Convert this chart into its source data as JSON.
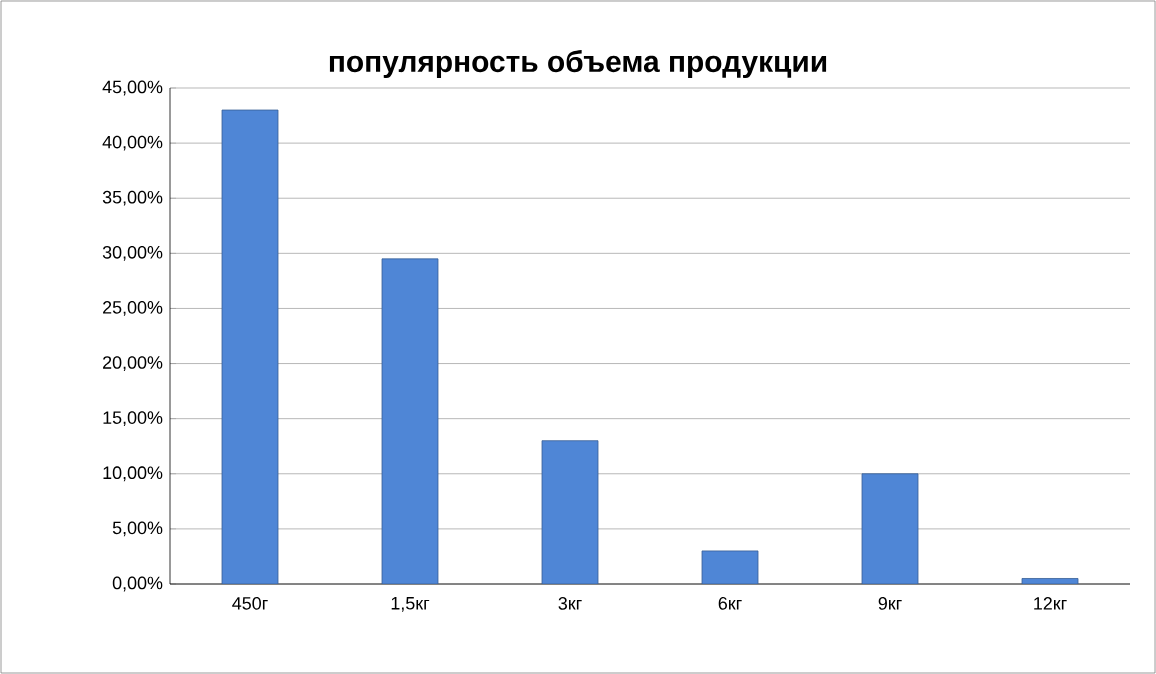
{
  "chart_data": {
    "type": "bar",
    "title": "популярность объема продукции",
    "categories": [
      "450г",
      "1,5кг",
      "3кг",
      "6кг",
      "9кг",
      "12кг"
    ],
    "values": [
      43,
      29.5,
      13,
      3,
      10,
      0.5
    ],
    "color": "#4f86d6",
    "ylim": [
      0,
      45
    ],
    "yticks": [
      {
        "value": 0,
        "label": "0,00%"
      },
      {
        "value": 5,
        "label": "5,00%"
      },
      {
        "value": 10,
        "label": "10,00%"
      },
      {
        "value": 15,
        "label": "15,00%"
      },
      {
        "value": 20,
        "label": "20,00%"
      },
      {
        "value": 25,
        "label": "25,00%"
      },
      {
        "value": 30,
        "label": "30,00%"
      },
      {
        "value": 35,
        "label": "35,00%"
      },
      {
        "value": 40,
        "label": "40,00%"
      },
      {
        "value": 45,
        "label": "45,00%"
      }
    ],
    "grid": "y"
  }
}
